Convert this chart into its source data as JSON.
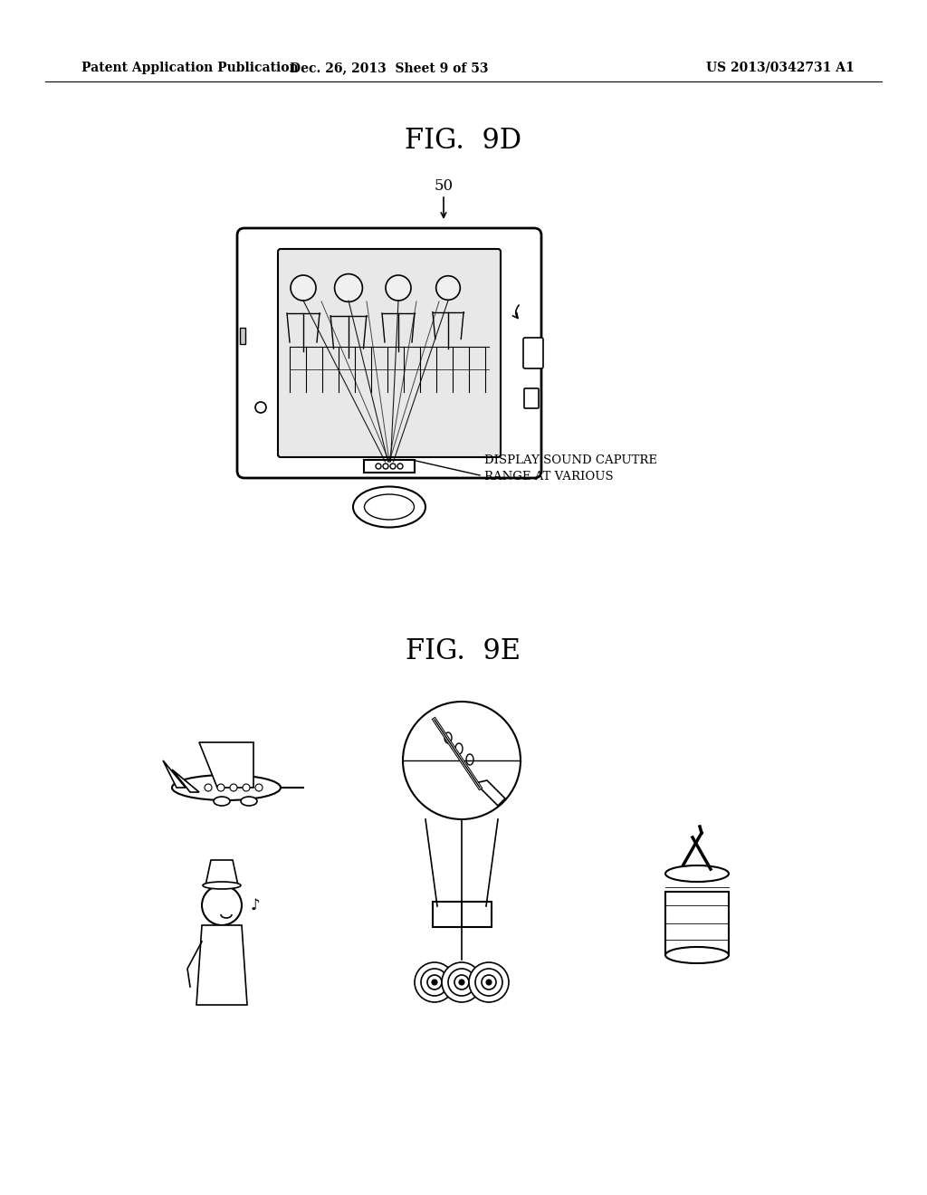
{
  "background_color": "#ffffff",
  "header_left": "Patent Application Publication",
  "header_center": "Dec. 26, 2013  Sheet 9 of 53",
  "header_right": "US 2013/0342731 A1",
  "fig_9d_title": "FIG.  9D",
  "fig_9e_title": "FIG.  9E",
  "label_50": "50",
  "label_display": "DISPLAY SOUND CAPUTRE\nRANGE AT VARIOUS"
}
